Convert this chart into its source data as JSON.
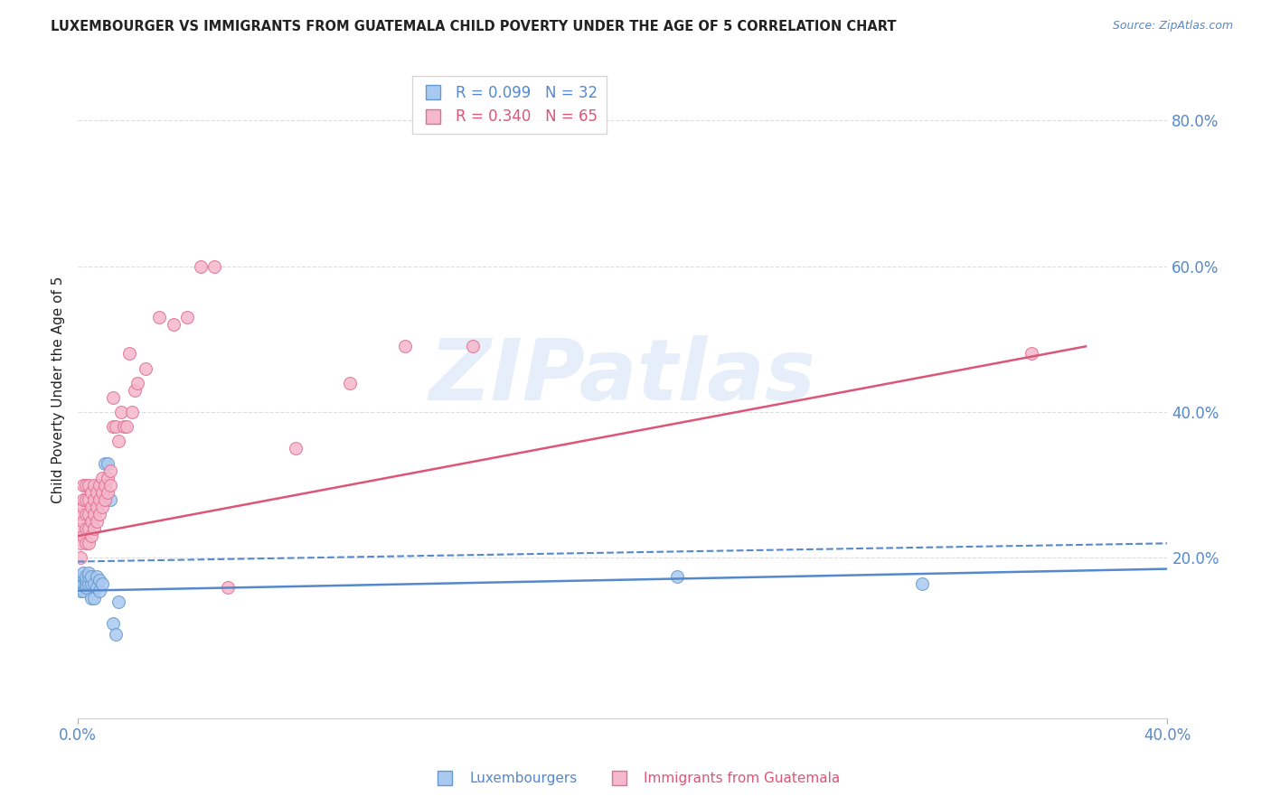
{
  "title": "LUXEMBOURGER VS IMMIGRANTS FROM GUATEMALA CHILD POVERTY UNDER THE AGE OF 5 CORRELATION CHART",
  "source": "Source: ZipAtlas.com",
  "ylabel": "Child Poverty Under the Age of 5",
  "xlim": [
    0.0,
    0.4
  ],
  "ylim": [
    -0.02,
    0.88
  ],
  "right_yticks": [
    0.2,
    0.4,
    0.6,
    0.8
  ],
  "right_yticklabels": [
    "20.0%",
    "40.0%",
    "60.0%",
    "80.0%"
  ],
  "xticks": [
    0.0,
    0.4
  ],
  "xticklabels": [
    "0.0%",
    "40.0%"
  ],
  "watermark_text": "ZIPatlas",
  "bg_color": "#ffffff",
  "blue_color": "#aac9f0",
  "pink_color": "#f5b8cc",
  "blue_edge_color": "#6699cc",
  "pink_edge_color": "#e07090",
  "blue_line_color": "#5588cc",
  "pink_line_color": "#dd5577",
  "axis_label_color": "#5588cc",
  "title_color": "#222222",
  "grid_color": "#dddddd",
  "scatter_size": 100,
  "blue_scatter_x": [
    0.001,
    0.001,
    0.001,
    0.002,
    0.002,
    0.002,
    0.002,
    0.003,
    0.003,
    0.003,
    0.003,
    0.004,
    0.004,
    0.004,
    0.005,
    0.005,
    0.005,
    0.006,
    0.006,
    0.007,
    0.007,
    0.008,
    0.008,
    0.009,
    0.01,
    0.011,
    0.012,
    0.013,
    0.014,
    0.015,
    0.22,
    0.31
  ],
  "blue_scatter_y": [
    0.155,
    0.16,
    0.17,
    0.155,
    0.165,
    0.175,
    0.18,
    0.16,
    0.165,
    0.17,
    0.175,
    0.165,
    0.175,
    0.18,
    0.145,
    0.165,
    0.175,
    0.145,
    0.165,
    0.16,
    0.175,
    0.155,
    0.17,
    0.165,
    0.33,
    0.33,
    0.28,
    0.11,
    0.095,
    0.14,
    0.175,
    0.165
  ],
  "pink_scatter_x": [
    0.001,
    0.001,
    0.001,
    0.001,
    0.002,
    0.002,
    0.002,
    0.002,
    0.002,
    0.003,
    0.003,
    0.003,
    0.003,
    0.003,
    0.004,
    0.004,
    0.004,
    0.004,
    0.004,
    0.005,
    0.005,
    0.005,
    0.005,
    0.006,
    0.006,
    0.006,
    0.006,
    0.007,
    0.007,
    0.007,
    0.008,
    0.008,
    0.008,
    0.009,
    0.009,
    0.009,
    0.01,
    0.01,
    0.011,
    0.011,
    0.012,
    0.012,
    0.013,
    0.013,
    0.014,
    0.015,
    0.016,
    0.017,
    0.018,
    0.019,
    0.02,
    0.021,
    0.022,
    0.025,
    0.03,
    0.035,
    0.04,
    0.045,
    0.05,
    0.055,
    0.08,
    0.1,
    0.12,
    0.145,
    0.35
  ],
  "pink_scatter_y": [
    0.2,
    0.22,
    0.24,
    0.26,
    0.23,
    0.25,
    0.27,
    0.28,
    0.3,
    0.22,
    0.24,
    0.26,
    0.28,
    0.3,
    0.22,
    0.24,
    0.26,
    0.28,
    0.3,
    0.23,
    0.25,
    0.27,
    0.29,
    0.24,
    0.26,
    0.28,
    0.3,
    0.25,
    0.27,
    0.29,
    0.26,
    0.28,
    0.3,
    0.27,
    0.29,
    0.31,
    0.28,
    0.3,
    0.29,
    0.31,
    0.3,
    0.32,
    0.38,
    0.42,
    0.38,
    0.36,
    0.4,
    0.38,
    0.38,
    0.48,
    0.4,
    0.43,
    0.44,
    0.46,
    0.53,
    0.52,
    0.53,
    0.6,
    0.6,
    0.16,
    0.35,
    0.44,
    0.49,
    0.49,
    0.48
  ],
  "blue_line": {
    "x0": 0.0,
    "x1": 0.4,
    "y0": 0.155,
    "y1": 0.185
  },
  "pink_line": {
    "x0": 0.0,
    "x1": 0.37,
    "y0": 0.23,
    "y1": 0.49
  },
  "blue_dashed_line": {
    "x0": 0.0,
    "x1": 0.4,
    "y0": 0.195,
    "y1": 0.22
  },
  "legend_r_blue": "R = 0.099",
  "legend_n_blue": "N = 32",
  "legend_r_pink": "R = 0.340",
  "legend_n_pink": "N = 65"
}
